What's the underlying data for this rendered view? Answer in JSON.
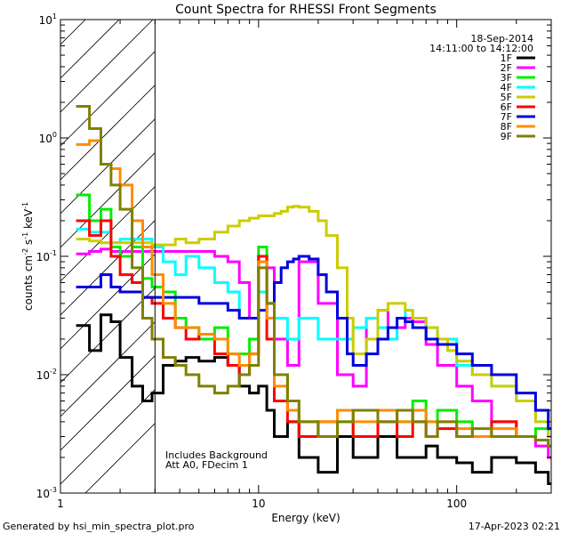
{
  "chart_data": {
    "type": "line",
    "title": "Count Spectra for RHESSI Front Segments",
    "xlabel": "Energy (keV)",
    "ylabel_parts": [
      "counts cm",
      "-2",
      " s",
      "-1",
      " keV",
      "-1"
    ],
    "xscale": "log",
    "yscale": "log",
    "xlim": [
      1,
      300
    ],
    "ylim": [
      0.001,
      10
    ],
    "x_ticks": [
      {
        "v": 1,
        "label": "1"
      },
      {
        "v": 10,
        "label": "10"
      },
      {
        "v": 100,
        "label": "100"
      }
    ],
    "y_ticks": [
      {
        "v": 0.001,
        "base": "10",
        "exp": "-3"
      },
      {
        "v": 0.01,
        "base": "10",
        "exp": "-2"
      },
      {
        "v": 0.1,
        "base": "10",
        "exp": "-1"
      },
      {
        "v": 1,
        "base": "10",
        "exp": "0"
      },
      {
        "v": 10,
        "base": "10",
        "exp": "1"
      }
    ],
    "date": "18-Sep-2014",
    "time_range": "14:11:00 to 14:12:00",
    "note_lines": [
      "Includes Background",
      "Att A0, FDecim 1"
    ],
    "hatch_region": [
      1,
      3
    ],
    "legend_position": "top-right",
    "series": [
      {
        "name": "1F",
        "color": "#000000",
        "x": [
          1.2,
          1.4,
          1.6,
          1.8,
          2.0,
          2.3,
          2.6,
          2.9,
          3.3,
          3.8,
          4.3,
          5,
          6,
          7,
          8,
          9,
          10,
          11,
          12,
          14,
          16,
          20,
          25,
          30,
          40,
          50,
          60,
          70,
          80,
          100,
          120,
          150,
          200,
          250,
          290
        ],
        "y": [
          0.026,
          0.016,
          0.032,
          0.028,
          0.014,
          0.008,
          0.006,
          0.007,
          0.012,
          0.013,
          0.014,
          0.013,
          0.014,
          0.012,
          0.008,
          0.007,
          0.008,
          0.005,
          0.003,
          0.004,
          0.002,
          0.0015,
          0.003,
          0.002,
          0.003,
          0.002,
          0.002,
          0.0025,
          0.002,
          0.0018,
          0.0015,
          0.002,
          0.0018,
          0.0015,
          0.0012
        ]
      },
      {
        "name": "2F",
        "color": "#ff00ff",
        "x": [
          1.2,
          1.4,
          1.6,
          1.8,
          2.0,
          2.3,
          2.6,
          2.9,
          3.3,
          3.8,
          4.3,
          5,
          6,
          7,
          8,
          9,
          10,
          11,
          12,
          14,
          16,
          20,
          25,
          30,
          35,
          40,
          45,
          50,
          55,
          60,
          70,
          80,
          100,
          120,
          150,
          200,
          250,
          290
        ],
        "y": [
          0.105,
          0.11,
          0.115,
          0.11,
          0.11,
          0.11,
          0.11,
          0.11,
          0.11,
          0.11,
          0.11,
          0.11,
          0.1,
          0.09,
          0.06,
          0.03,
          0.1,
          0.08,
          0.02,
          0.012,
          0.09,
          0.04,
          0.01,
          0.008,
          0.03,
          0.035,
          0.02,
          0.025,
          0.03,
          0.028,
          0.018,
          0.012,
          0.008,
          0.006,
          0.004,
          0.003,
          0.0025,
          0.002
        ]
      },
      {
        "name": "3F",
        "color": "#00ee00",
        "x": [
          1.2,
          1.4,
          1.6,
          1.8,
          2.0,
          2.3,
          2.6,
          2.9,
          3.3,
          3.8,
          4.3,
          5,
          6,
          7,
          8,
          9,
          10,
          11,
          12,
          14,
          16,
          20,
          25,
          30,
          40,
          50,
          60,
          70,
          80,
          100,
          120,
          150,
          200,
          250,
          290
        ],
        "y": [
          0.33,
          0.2,
          0.25,
          0.12,
          0.1,
          0.12,
          0.065,
          0.055,
          0.05,
          0.03,
          0.025,
          0.02,
          0.025,
          0.015,
          0.015,
          0.02,
          0.12,
          0.03,
          0.01,
          0.006,
          0.004,
          0.003,
          0.004,
          0.003,
          0.005,
          0.004,
          0.006,
          0.004,
          0.005,
          0.004,
          0.003,
          0.004,
          0.003,
          0.0035,
          0.003
        ]
      },
      {
        "name": "4F",
        "color": "#00ffff",
        "x": [
          1.2,
          1.4,
          1.6,
          1.8,
          2.0,
          2.3,
          2.6,
          2.9,
          3.3,
          3.8,
          4.3,
          5,
          6,
          7,
          8,
          9,
          10,
          11,
          12,
          14,
          16,
          20,
          25,
          30,
          35,
          40,
          45,
          50,
          55,
          60,
          70,
          80,
          100,
          120,
          150,
          200,
          250,
          290
        ],
        "y": [
          0.17,
          0.16,
          0.16,
          0.13,
          0.14,
          0.14,
          0.14,
          0.12,
          0.09,
          0.07,
          0.1,
          0.08,
          0.06,
          0.05,
          0.03,
          0.03,
          0.05,
          0.04,
          0.03,
          0.02,
          0.03,
          0.02,
          0.02,
          0.025,
          0.03,
          0.025,
          0.02,
          0.03,
          0.035,
          0.03,
          0.025,
          0.02,
          0.012,
          0.01,
          0.008,
          0.006,
          0.004,
          0.003
        ]
      },
      {
        "name": "5F",
        "color": "#cccc00",
        "x": [
          1.2,
          1.4,
          1.6,
          1.8,
          2.0,
          2.3,
          2.6,
          2.9,
          3.3,
          3.8,
          4.3,
          5,
          6,
          7,
          8,
          9,
          10,
          11,
          12,
          13,
          14,
          15,
          16,
          18,
          20,
          22,
          25,
          28,
          30,
          35,
          40,
          45,
          50,
          55,
          60,
          70,
          80,
          90,
          100,
          120,
          150,
          200,
          250,
          290
        ],
        "y": [
          0.14,
          0.135,
          0.13,
          0.13,
          0.13,
          0.13,
          0.13,
          0.125,
          0.125,
          0.14,
          0.13,
          0.14,
          0.16,
          0.18,
          0.2,
          0.21,
          0.22,
          0.22,
          0.23,
          0.24,
          0.26,
          0.265,
          0.26,
          0.24,
          0.2,
          0.15,
          0.08,
          0.03,
          0.015,
          0.02,
          0.035,
          0.04,
          0.04,
          0.035,
          0.03,
          0.025,
          0.02,
          0.016,
          0.013,
          0.01,
          0.008,
          0.006,
          0.004,
          0.003
        ]
      },
      {
        "name": "6F",
        "color": "#ff0000",
        "x": [
          1.2,
          1.4,
          1.6,
          1.8,
          2.0,
          2.3,
          2.6,
          2.9,
          3.3,
          3.8,
          4.3,
          5,
          6,
          7,
          8,
          9,
          10,
          11,
          12,
          14,
          16,
          20,
          25,
          30,
          40,
          50,
          60,
          70,
          80,
          100,
          120,
          150,
          200,
          250,
          290
        ],
        "y": [
          0.2,
          0.15,
          0.2,
          0.1,
          0.07,
          0.06,
          0.045,
          0.04,
          0.03,
          0.025,
          0.02,
          0.022,
          0.015,
          0.012,
          0.01,
          0.015,
          0.1,
          0.02,
          0.006,
          0.004,
          0.003,
          0.004,
          0.005,
          0.003,
          0.004,
          0.003,
          0.004,
          0.003,
          0.0035,
          0.003,
          0.003,
          0.004,
          0.003,
          0.0028,
          0.0025
        ]
      },
      {
        "name": "7F",
        "color": "#0000dd",
        "x": [
          1.2,
          1.4,
          1.6,
          1.8,
          2.0,
          2.3,
          2.6,
          2.9,
          3.3,
          3.8,
          4.3,
          5,
          6,
          7,
          8,
          9,
          10,
          11,
          12,
          13,
          14,
          15,
          16,
          18,
          20,
          22,
          25,
          28,
          30,
          35,
          40,
          45,
          50,
          55,
          60,
          70,
          80,
          100,
          120,
          150,
          200,
          250,
          290
        ],
        "y": [
          0.055,
          0.055,
          0.07,
          0.055,
          0.05,
          0.05,
          0.045,
          0.045,
          0.045,
          0.045,
          0.045,
          0.04,
          0.04,
          0.035,
          0.03,
          0.03,
          0.035,
          0.04,
          0.06,
          0.08,
          0.09,
          0.095,
          0.1,
          0.095,
          0.07,
          0.05,
          0.03,
          0.015,
          0.012,
          0.015,
          0.02,
          0.025,
          0.03,
          0.028,
          0.025,
          0.02,
          0.018,
          0.015,
          0.012,
          0.01,
          0.007,
          0.005,
          0.0035
        ]
      },
      {
        "name": "8F",
        "color": "#ff8c00",
        "x": [
          1.2,
          1.4,
          1.6,
          1.8,
          2.0,
          2.3,
          2.6,
          2.9,
          3.3,
          3.8,
          4.3,
          5,
          6,
          7,
          8,
          9,
          10,
          11,
          12,
          14,
          16,
          20,
          25,
          30,
          40,
          50,
          60,
          70,
          80,
          100,
          120,
          150,
          200,
          250,
          290
        ],
        "y": [
          0.88,
          0.95,
          0.6,
          0.55,
          0.4,
          0.2,
          0.12,
          0.07,
          0.04,
          0.025,
          0.025,
          0.022,
          0.02,
          0.015,
          0.012,
          0.015,
          0.09,
          0.03,
          0.008,
          0.005,
          0.004,
          0.004,
          0.005,
          0.004,
          0.005,
          0.004,
          0.005,
          0.004,
          0.004,
          0.0035,
          0.003,
          0.0035,
          0.003,
          0.0028,
          0.0025
        ]
      },
      {
        "name": "9F",
        "color": "#808000",
        "x": [
          1.2,
          1.4,
          1.6,
          1.8,
          2.0,
          2.3,
          2.6,
          2.9,
          3.3,
          3.8,
          4.3,
          5,
          6,
          7,
          8,
          9,
          10,
          11,
          12,
          14,
          16,
          20,
          25,
          30,
          40,
          50,
          60,
          70,
          80,
          100,
          120,
          150,
          200,
          250,
          290
        ],
        "y": [
          1.85,
          1.2,
          0.6,
          0.4,
          0.25,
          0.08,
          0.03,
          0.02,
          0.014,
          0.012,
          0.01,
          0.008,
          0.007,
          0.008,
          0.01,
          0.012,
          0.08,
          0.04,
          0.01,
          0.006,
          0.004,
          0.003,
          0.004,
          0.005,
          0.004,
          0.005,
          0.004,
          0.003,
          0.004,
          0.003,
          0.0035,
          0.003,
          0.003,
          0.0028,
          0.0025
        ]
      }
    ]
  },
  "footer": {
    "left": "Generated by hsi_min_spectra_plot.pro",
    "right": "17-Apr-2023 02:21"
  }
}
